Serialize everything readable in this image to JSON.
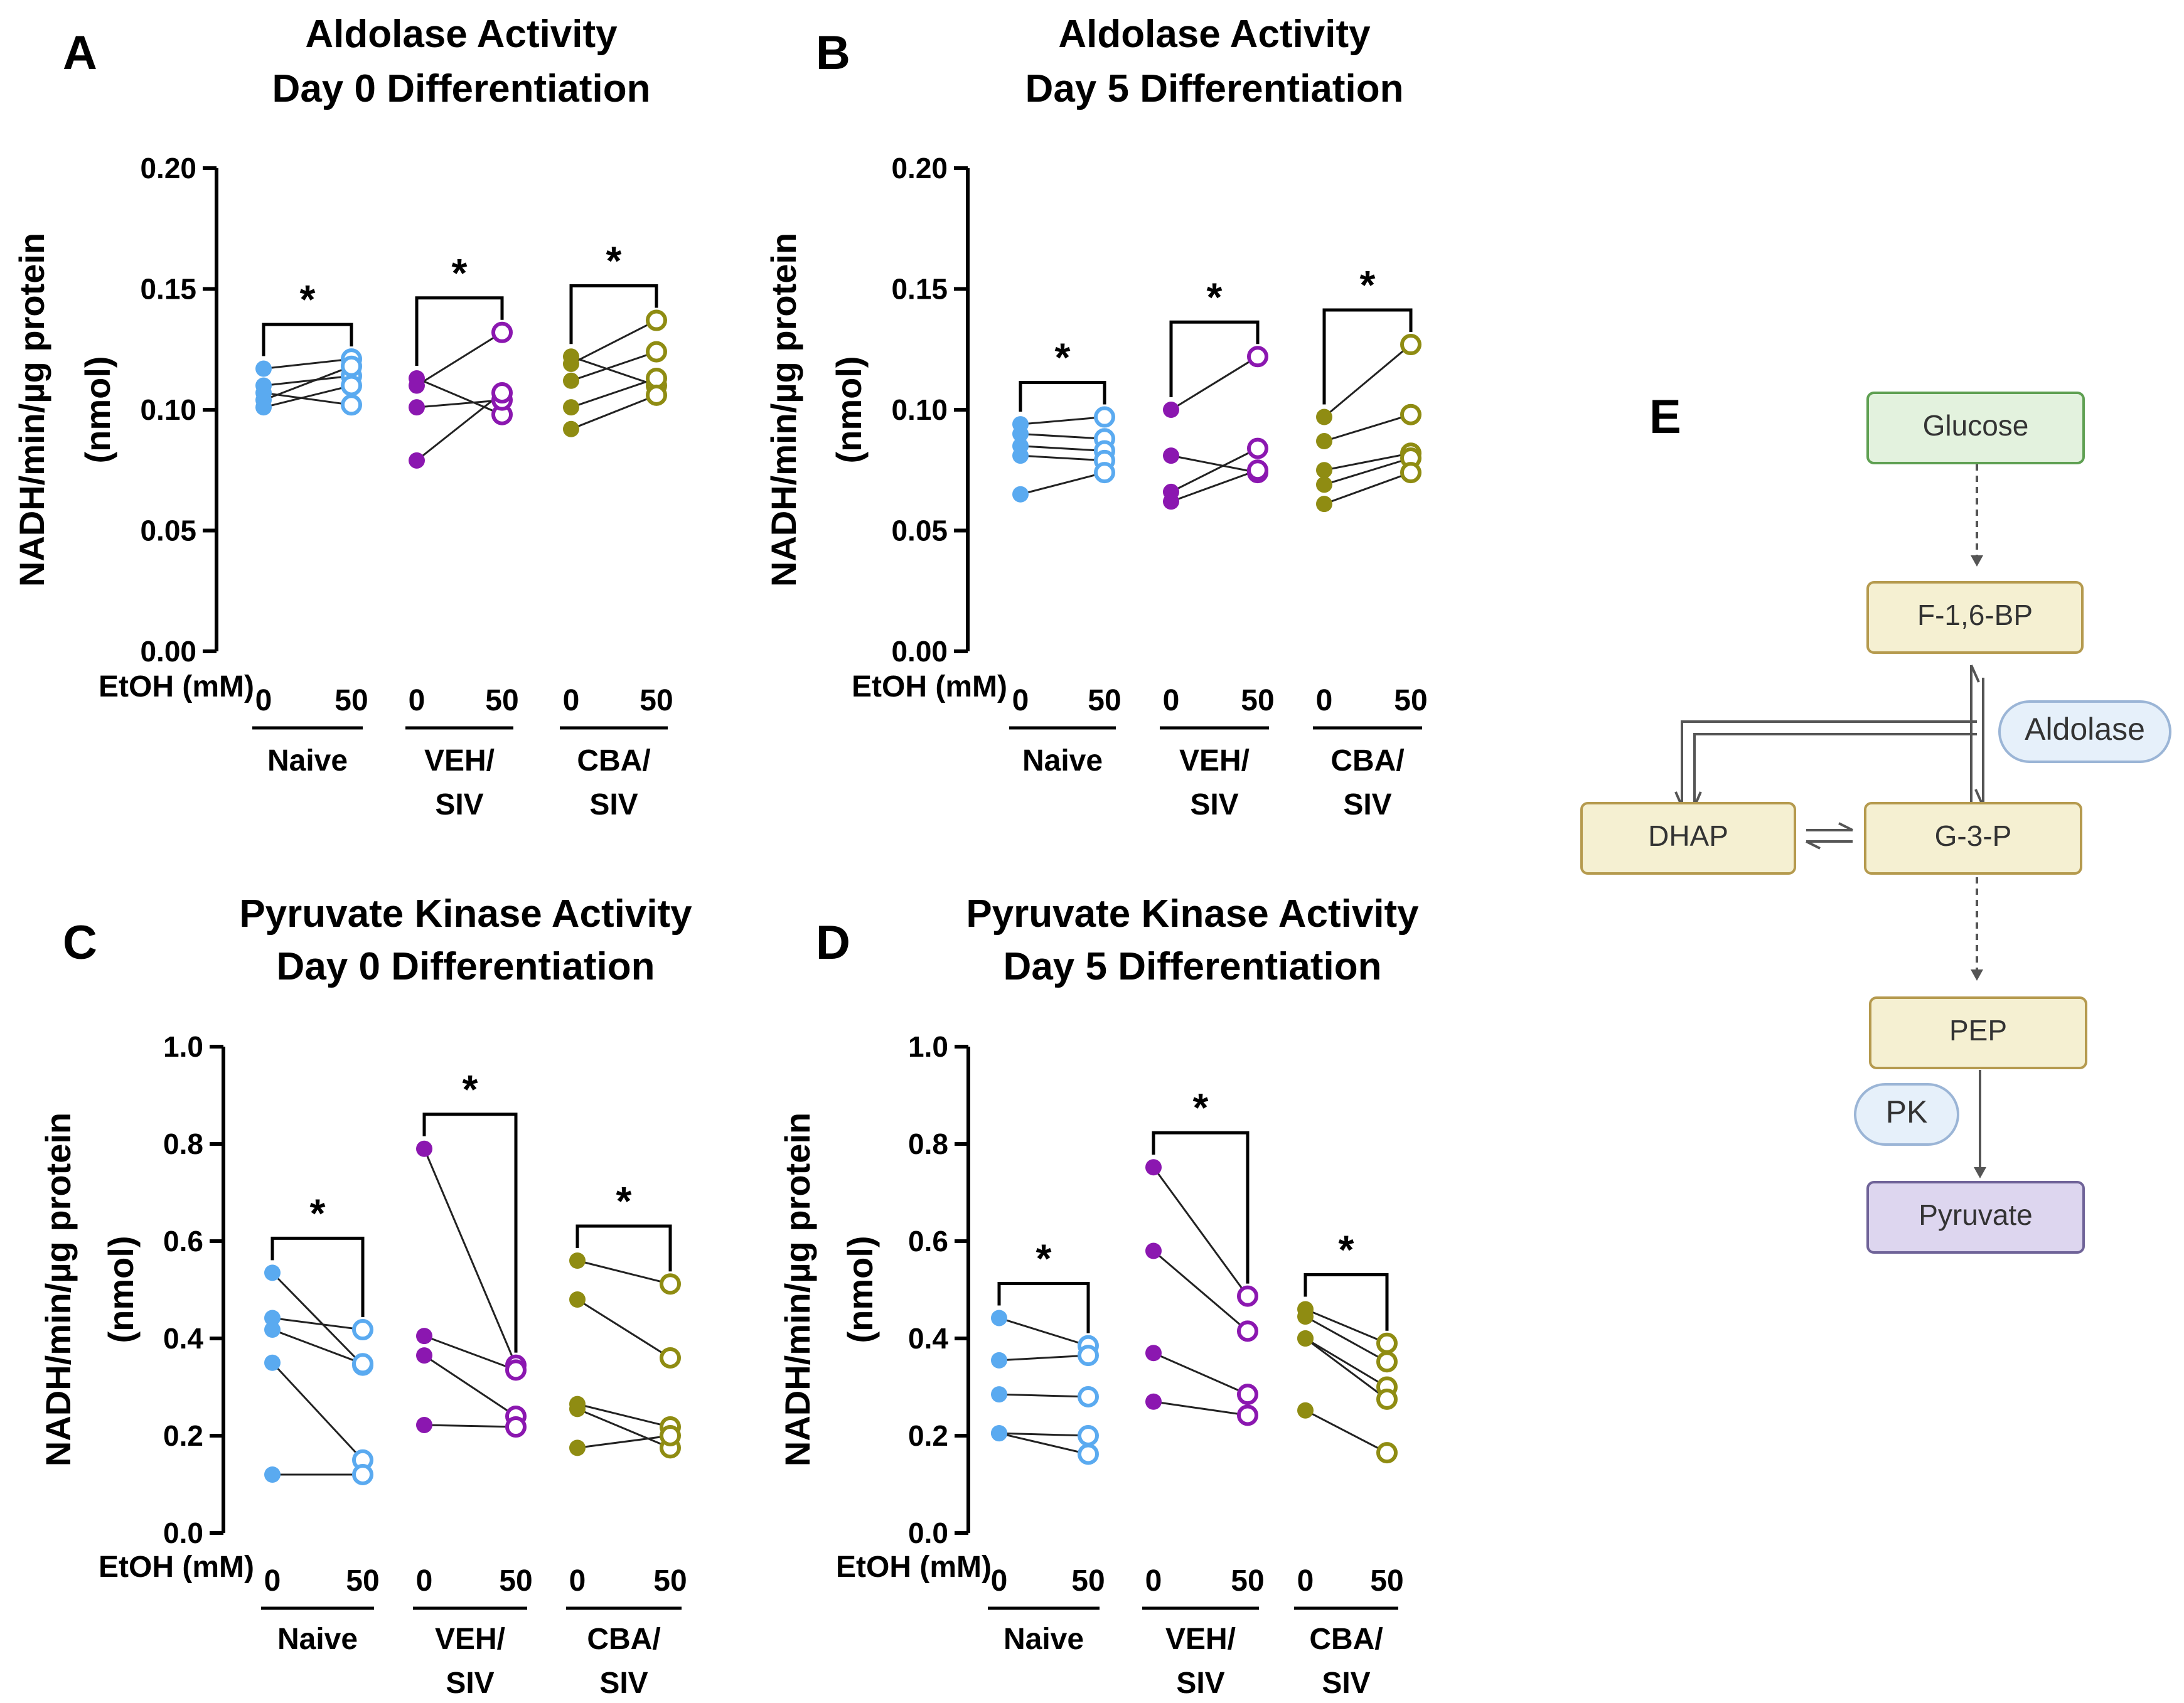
{
  "chart_data": [
    {
      "type": "scatter",
      "panel": "A",
      "title": [
        "Aldolase Activity",
        "Day 0 Differentiation"
      ],
      "ylabel": [
        "NADH/min/µg protein",
        "(nmol)"
      ],
      "ylim": [
        0,
        0.2
      ],
      "yticks": [
        "0.00",
        "0.05",
        "0.10",
        "0.15",
        "0.20"
      ],
      "xaxis_label": "EtOH (mM)",
      "dose_labels": [
        "0",
        "50"
      ],
      "significance": "*",
      "groups": [
        {
          "name": [
            "Naive"
          ],
          "color": "#5aaaf0",
          "pairs": [
            [
              0.117,
              0.121
            ],
            [
              0.11,
              0.114
            ],
            [
              0.107,
              0.102
            ],
            [
              0.104,
              0.118
            ],
            [
              0.101,
              0.11
            ]
          ]
        },
        {
          "name": [
            "VEH/",
            "SIV"
          ],
          "color": "#8b17b0",
          "pairs": [
            [
              0.113,
              0.098
            ],
            [
              0.11,
              0.132
            ],
            [
              0.101,
              0.104
            ],
            [
              0.079,
              0.107
            ]
          ]
        },
        {
          "name": [
            "CBA/",
            "SIV"
          ],
          "color": "#8f8c12",
          "pairs": [
            [
              0.122,
              0.11
            ],
            [
              0.119,
              0.137
            ],
            [
              0.112,
              0.124
            ],
            [
              0.101,
              0.113
            ],
            [
              0.092,
              0.106
            ]
          ]
        }
      ]
    },
    {
      "type": "scatter",
      "panel": "B",
      "title": [
        "Aldolase Activity",
        "Day 5 Differentiation"
      ],
      "ylabel": [
        "NADH/min/µg protein",
        "(nmol)"
      ],
      "ylim": [
        0,
        0.2
      ],
      "yticks": [
        "0.00",
        "0.05",
        "0.10",
        "0.15",
        "0.20"
      ],
      "xaxis_label": "EtOH (mM)",
      "dose_labels": [
        "0",
        "50"
      ],
      "significance": "*",
      "groups": [
        {
          "name": [
            "Naive"
          ],
          "color": "#5aaaf0",
          "pairs": [
            [
              0.094,
              0.097
            ],
            [
              0.09,
              0.088
            ],
            [
              0.085,
              0.083
            ],
            [
              0.081,
              0.079
            ],
            [
              0.065,
              0.074
            ]
          ]
        },
        {
          "name": [
            "VEH/",
            "SIV"
          ],
          "color": "#8b17b0",
          "pairs": [
            [
              0.1,
              0.122
            ],
            [
              0.081,
              0.074
            ],
            [
              0.066,
              0.084
            ],
            [
              0.062,
              0.075
            ]
          ]
        },
        {
          "name": [
            "CBA/",
            "SIV"
          ],
          "color": "#8f8c12",
          "pairs": [
            [
              0.097,
              0.127
            ],
            [
              0.087,
              0.098
            ],
            [
              0.075,
              0.082
            ],
            [
              0.069,
              0.08
            ],
            [
              0.061,
              0.074
            ]
          ]
        }
      ]
    },
    {
      "type": "scatter",
      "panel": "C",
      "title": [
        "Pyruvate Kinase Activity",
        "Day 0 Differentiation"
      ],
      "ylabel": [
        "NADH/min/µg protein",
        "(nmol)"
      ],
      "ylim": [
        0,
        1.0
      ],
      "yticks": [
        "0.0",
        "0.2",
        "0.4",
        "0.6",
        "0.8",
        "1.0"
      ],
      "xaxis_label": "EtOH (mM)",
      "dose_labels": [
        "0",
        "50"
      ],
      "significance": "*",
      "groups": [
        {
          "name": [
            "Naive"
          ],
          "color": "#5aaaf0",
          "pairs": [
            [
              0.535,
              0.345
            ],
            [
              0.442,
              0.418
            ],
            [
              0.418,
              0.348
            ],
            [
              0.35,
              0.15
            ],
            [
              0.12,
              0.12
            ]
          ]
        },
        {
          "name": [
            "VEH/",
            "SIV"
          ],
          "color": "#8b17b0",
          "pairs": [
            [
              0.79,
              0.345
            ],
            [
              0.405,
              0.335
            ],
            [
              0.365,
              0.24
            ],
            [
              0.222,
              0.218
            ]
          ]
        },
        {
          "name": [
            "CBA/",
            "SIV"
          ],
          "color": "#8f8c12",
          "pairs": [
            [
              0.56,
              0.512
            ],
            [
              0.48,
              0.36
            ],
            [
              0.265,
              0.218
            ],
            [
              0.255,
              0.175
            ],
            [
              0.175,
              0.2
            ]
          ]
        }
      ]
    },
    {
      "type": "scatter",
      "panel": "D",
      "title": [
        "Pyruvate Kinase Activity",
        "Day 5 Differentiation"
      ],
      "ylabel": [
        "NADH/min/µg protein",
        "(nmol)"
      ],
      "ylim": [
        0,
        1.0
      ],
      "yticks": [
        "0.0",
        "0.2",
        "0.4",
        "0.6",
        "0.8",
        "1.0"
      ],
      "xaxis_label": "EtOH (mM)",
      "dose_labels": [
        "0",
        "50"
      ],
      "significance": "*",
      "groups": [
        {
          "name": [
            "Naive"
          ],
          "color": "#5aaaf0",
          "pairs": [
            [
              0.442,
              0.385
            ],
            [
              0.355,
              0.365
            ],
            [
              0.285,
              0.28
            ],
            [
              0.205,
              0.2
            ],
            [
              0.205,
              0.162
            ]
          ]
        },
        {
          "name": [
            "VEH/",
            "SIV"
          ],
          "color": "#8b17b0",
          "pairs": [
            [
              0.752,
              0.487
            ],
            [
              0.58,
              0.415
            ],
            [
              0.37,
              0.285
            ],
            [
              0.27,
              0.242
            ]
          ]
        },
        {
          "name": [
            "CBA/",
            "SIV"
          ],
          "color": "#8f8c12",
          "pairs": [
            [
              0.46,
              0.39
            ],
            [
              0.445,
              0.352
            ],
            [
              0.4,
              0.3
            ],
            [
              0.4,
              0.275
            ],
            [
              0.252,
              0.165
            ]
          ]
        }
      ]
    }
  ],
  "pathway": {
    "letter": "E",
    "nodes": {
      "glucose": "Glucose",
      "f16bp": "F-1,6-BP",
      "dhap": "DHAP",
      "g3p": "G-3-P",
      "pep": "PEP",
      "pyruvate": "Pyruvate"
    },
    "enzymes": {
      "aldolase": "Aldolase",
      "pk": "PK"
    },
    "colors": {
      "glucose": "#e3f2de",
      "glucose_border": "#5fa052",
      "metabolite": "#f5f0d2",
      "metabolite_border": "#b59a4e",
      "pyruvate": "#ddd6ef",
      "pyruvate_border": "#6f6398",
      "enzyme": "#e6f0fa",
      "enzyme_border": "#9bb5d6"
    }
  }
}
